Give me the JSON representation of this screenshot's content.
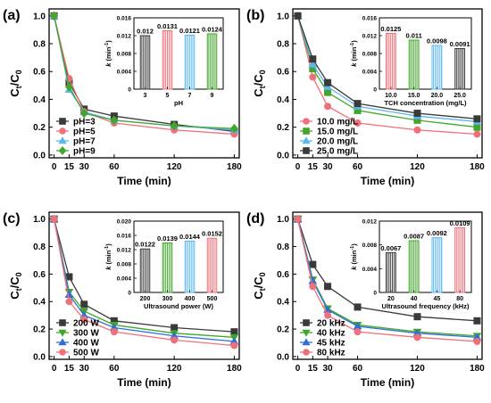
{
  "chart_data": [
    {
      "type": "line",
      "panel_label": "(a)",
      "xlabel": "Time (min)",
      "ylabel_main": "C",
      "ylabel_sub_t": "t",
      "ylabel_slash": "/C",
      "ylabel_sub_0": "0",
      "xlim": [
        -5,
        185
      ],
      "ylim": [
        -0.02,
        1.05
      ],
      "xticks": [
        0,
        15,
        30,
        60,
        120,
        180
      ],
      "yticks": [
        0.0,
        0.2,
        0.4,
        0.6,
        0.8,
        1.0
      ],
      "ytick_labels": [
        "0.0",
        "0.2",
        "0.4",
        "0.6",
        "0.8",
        "1.0"
      ],
      "legend_position": "bottom-left",
      "x": [
        0,
        15,
        30,
        60,
        120,
        180
      ],
      "series": [
        {
          "name": "pH=3",
          "color": "#3a3a3a",
          "marker": "square",
          "values": [
            1.0,
            0.52,
            0.33,
            0.28,
            0.22,
            0.17
          ]
        },
        {
          "name": "pH=5",
          "color": "#f0707a",
          "marker": "circle",
          "values": [
            1.0,
            0.55,
            0.31,
            0.23,
            0.18,
            0.15
          ]
        },
        {
          "name": "pH=7",
          "color": "#59b7f0",
          "marker": "triangle",
          "values": [
            1.0,
            0.47,
            0.31,
            0.25,
            0.21,
            0.18
          ]
        },
        {
          "name": "pH=9",
          "color": "#41a62a",
          "marker": "diamond",
          "values": [
            1.0,
            0.49,
            0.3,
            0.25,
            0.21,
            0.19
          ]
        }
      ],
      "inset": {
        "type": "bar",
        "xlabel": "pH",
        "ylabel_k": "k",
        "ylabel_unit": " (min",
        "ylabel_exp": "-1",
        "ylabel_close": ")",
        "categories": [
          "3",
          "5",
          "7",
          "9"
        ],
        "values": [
          0.012,
          0.0131,
          0.0121,
          0.0124
        ],
        "value_labels": [
          "0.012",
          "0.0131",
          "0.0121",
          "0.0124"
        ],
        "colors": [
          "#3a3a3a",
          "#f0707a",
          "#59b7f0",
          "#41a62a"
        ],
        "ylim": [
          0,
          0.016
        ],
        "yticks": [
          0,
          0.004,
          0.008,
          0.012,
          0.016
        ],
        "ytick_labels": [
          "0",
          "0.004",
          "0.008",
          "0.012",
          "0.016"
        ]
      }
    },
    {
      "type": "line",
      "panel_label": "(b)",
      "xlabel": "Time (min)",
      "ylabel_main": "C",
      "ylabel_sub_t": "t",
      "ylabel_slash": "/C",
      "ylabel_sub_0": "0",
      "xlim": [
        -5,
        185
      ],
      "ylim": [
        -0.02,
        1.05
      ],
      "xticks": [
        0,
        15,
        30,
        60,
        120,
        180
      ],
      "yticks": [
        0.0,
        0.2,
        0.4,
        0.6,
        0.8,
        1.0
      ],
      "ytick_labels": [
        "0.0",
        "0.2",
        "0.4",
        "0.6",
        "0.8",
        "1.0"
      ],
      "legend_position": "bottom-left",
      "x": [
        0,
        15,
        30,
        60,
        120,
        180
      ],
      "series": [
        {
          "name": "10.0 mg/L",
          "color": "#f0707a",
          "marker": "circle",
          "values": [
            1.0,
            0.56,
            0.35,
            0.23,
            0.18,
            0.15
          ]
        },
        {
          "name": "15.0 mg/L",
          "color": "#41a62a",
          "marker": "square",
          "values": [
            1.0,
            0.62,
            0.45,
            0.32,
            0.25,
            0.2
          ]
        },
        {
          "name": "20.0 mg/L",
          "color": "#59b7f0",
          "marker": "triangle",
          "values": [
            1.0,
            0.65,
            0.49,
            0.35,
            0.28,
            0.24
          ]
        },
        {
          "name": "25.0 mg/L",
          "color": "#3a3a3a",
          "marker": "square",
          "values": [
            1.0,
            0.69,
            0.52,
            0.37,
            0.3,
            0.26
          ]
        }
      ],
      "inset": {
        "type": "bar",
        "xlabel": "TCH concentration (mg/L)",
        "ylabel_k": "k",
        "ylabel_unit": " (min",
        "ylabel_exp": "-1",
        "ylabel_close": ")",
        "categories": [
          "10.0",
          "15.0",
          "20.0",
          "25.0"
        ],
        "values": [
          0.0125,
          0.011,
          0.0098,
          0.0091
        ],
        "value_labels": [
          "0.0125",
          "0.011",
          "0.0098",
          "0.0091"
        ],
        "colors": [
          "#f0707a",
          "#41a62a",
          "#59b7f0",
          "#3a3a3a"
        ],
        "ylim": [
          0,
          0.016
        ],
        "yticks": [
          0,
          0.004,
          0.008,
          0.012,
          0.016
        ],
        "ytick_labels": [
          "0",
          "0.004",
          "0.008",
          "0.012",
          "0.016"
        ]
      }
    },
    {
      "type": "line",
      "panel_label": "(c)",
      "xlabel": "Time (min)",
      "ylabel_main": "C",
      "ylabel_sub_t": "t",
      "ylabel_slash": "/C",
      "ylabel_sub_0": "0",
      "xlim": [
        -5,
        185
      ],
      "ylim": [
        -0.02,
        1.05
      ],
      "xticks": [
        0,
        15,
        30,
        60,
        120,
        180
      ],
      "yticks": [
        0.0,
        0.2,
        0.4,
        0.6,
        0.8,
        1.0
      ],
      "ytick_labels": [
        "0.0",
        "0.2",
        "0.4",
        "0.6",
        "0.8",
        "1.0"
      ],
      "legend_position": "bottom-left",
      "x": [
        0,
        15,
        30,
        60,
        120,
        180
      ],
      "series": [
        {
          "name": "200 W",
          "color": "#3a3a3a",
          "marker": "square",
          "values": [
            1.0,
            0.58,
            0.38,
            0.26,
            0.21,
            0.18
          ]
        },
        {
          "name": "300 W",
          "color": "#41a62a",
          "marker": "triangle-down",
          "values": [
            1.0,
            0.47,
            0.33,
            0.23,
            0.17,
            0.14
          ]
        },
        {
          "name": "400 W",
          "color": "#2f6fd6",
          "marker": "triangle",
          "values": [
            1.0,
            0.45,
            0.3,
            0.21,
            0.15,
            0.11
          ]
        },
        {
          "name": "500 W",
          "color": "#f0707a",
          "marker": "circle",
          "values": [
            1.0,
            0.4,
            0.27,
            0.18,
            0.12,
            0.08
          ]
        }
      ],
      "inset": {
        "type": "bar",
        "xlabel": "Ultrasound power (W)",
        "ylabel_k": "k",
        "ylabel_unit": " (min",
        "ylabel_exp": "-1",
        "ylabel_close": ")",
        "categories": [
          "200",
          "300",
          "400",
          "500"
        ],
        "values": [
          0.0122,
          0.0139,
          0.0144,
          0.0152
        ],
        "value_labels": [
          "0.0122",
          "0.0139",
          "0.0144",
          "0.0152"
        ],
        "colors": [
          "#3a3a3a",
          "#41a62a",
          "#59b7f0",
          "#f0707a"
        ],
        "ylim": [
          0,
          0.02
        ],
        "yticks": [
          0,
          0.004,
          0.008,
          0.012,
          0.016,
          0.02
        ],
        "ytick_labels": [
          "0",
          "0.004",
          "0.008",
          "0.012",
          "0.016",
          "0.020"
        ]
      }
    },
    {
      "type": "line",
      "panel_label": "(d)",
      "xlabel": "Time (min)",
      "ylabel_main": "C",
      "ylabel_sub_t": "t",
      "ylabel_slash": "/C",
      "ylabel_sub_0": "0",
      "xlim": [
        -5,
        185
      ],
      "ylim": [
        -0.02,
        1.05
      ],
      "xticks": [
        0,
        15,
        30,
        60,
        120,
        180
      ],
      "yticks": [
        0.0,
        0.2,
        0.4,
        0.6,
        0.8,
        1.0
      ],
      "ytick_labels": [
        "0.0",
        "0.2",
        "0.4",
        "0.6",
        "0.8",
        "1.0"
      ],
      "legend_position": "bottom-left",
      "x": [
        0,
        15,
        30,
        60,
        120,
        180
      ],
      "series": [
        {
          "name": "20 kHz",
          "color": "#3a3a3a",
          "marker": "square",
          "values": [
            1.0,
            0.67,
            0.51,
            0.36,
            0.29,
            0.26
          ]
        },
        {
          "name": "40 kHz",
          "color": "#41a62a",
          "marker": "triangle-down",
          "values": [
            1.0,
            0.56,
            0.35,
            0.23,
            0.18,
            0.15
          ]
        },
        {
          "name": "45 kHz",
          "color": "#2f6fd6",
          "marker": "triangle",
          "values": [
            1.0,
            0.55,
            0.34,
            0.22,
            0.17,
            0.14
          ]
        },
        {
          "name": "80 kHz",
          "color": "#f0707a",
          "marker": "circle",
          "values": [
            1.0,
            0.51,
            0.3,
            0.18,
            0.14,
            0.11
          ]
        }
      ],
      "inset": {
        "type": "bar",
        "xlabel": "Ultrasound frequency (kHz)",
        "ylabel_k": "k",
        "ylabel_unit": " (min",
        "ylabel_exp": "-1",
        "ylabel_close": ")",
        "categories": [
          "20",
          "40",
          "45",
          "80"
        ],
        "values": [
          0.0067,
          0.0087,
          0.0092,
          0.0109
        ],
        "value_labels": [
          "0.0067",
          "0.0087",
          "0.0092",
          "0.0109"
        ],
        "colors": [
          "#3a3a3a",
          "#41a62a",
          "#59b7f0",
          "#f0707a"
        ],
        "ylim": [
          0,
          0.012
        ],
        "yticks": [
          0,
          0.004,
          0.008,
          0.012
        ],
        "ytick_labels": [
          "0",
          "0.004",
          "0.008",
          "0.012"
        ]
      }
    }
  ]
}
